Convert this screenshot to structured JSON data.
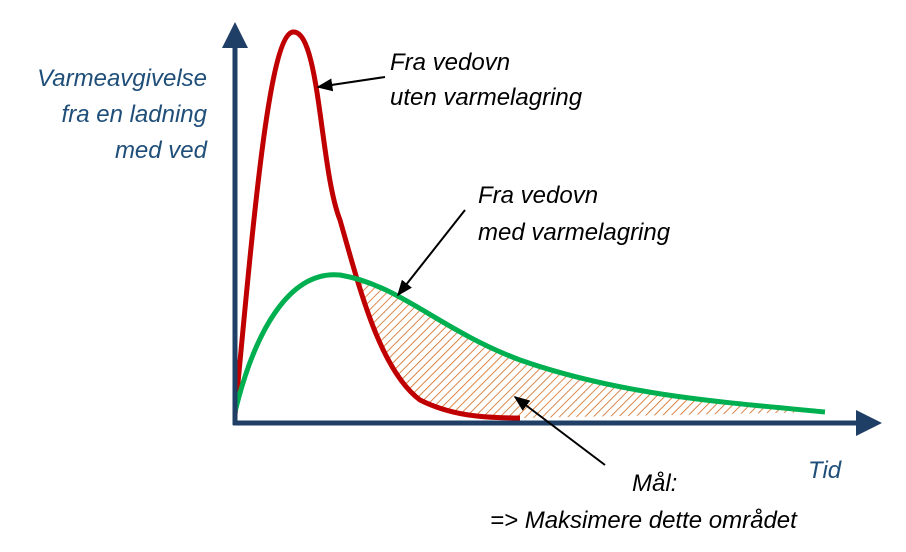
{
  "y_axis_label": [
    "Varmeavgivelse",
    "fra en ladning",
    "med ved"
  ],
  "x_axis_label": "Tid",
  "annotations": {
    "without_storage": [
      "Fra vedovn",
      "uten varmelagring"
    ],
    "with_storage": [
      "Fra vedovn",
      "med varmelagring"
    ],
    "goal": [
      "Mål:",
      "=> Maksimere dette området"
    ]
  }
}
